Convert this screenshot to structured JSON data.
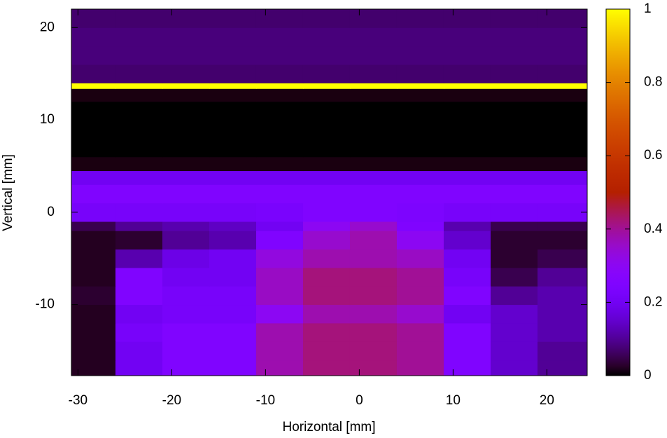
{
  "chart_data": {
    "type": "heatmap",
    "xlabel": "Horizontal [mm]",
    "ylabel": "Vertical [mm]",
    "xlim": [
      -30.7,
      24.3
    ],
    "ylim": [
      -17.7,
      22
    ],
    "xticks": [
      -30,
      -20,
      -10,
      0,
      10,
      20
    ],
    "yticks": [
      -10,
      0,
      10,
      20
    ],
    "zlim": [
      0,
      1
    ],
    "zticks": [
      0,
      0.2,
      0.4,
      0.6,
      0.8,
      1
    ],
    "x_edges": [
      -30.7,
      -26,
      -21,
      -16,
      -11,
      -6,
      -1,
      4,
      9,
      14,
      19,
      24.3
    ],
    "y_edges": [
      -17.7,
      -16,
      -14,
      -12,
      -10,
      -8,
      -6,
      -4,
      -2,
      -1,
      1,
      3,
      4.5,
      6,
      8,
      10,
      12,
      13.4,
      14,
      16,
      18,
      20,
      22
    ],
    "z": [
      [
        0.02,
        0.2,
        0.25,
        0.25,
        0.38,
        0.42,
        0.42,
        0.4,
        0.25,
        0.15,
        0.1
      ],
      [
        0.02,
        0.2,
        0.25,
        0.25,
        0.38,
        0.42,
        0.42,
        0.4,
        0.25,
        0.15,
        0.1
      ],
      [
        0.02,
        0.22,
        0.25,
        0.25,
        0.38,
        0.42,
        0.42,
        0.4,
        0.25,
        0.15,
        0.12
      ],
      [
        0.02,
        0.2,
        0.22,
        0.22,
        0.3,
        0.38,
        0.38,
        0.35,
        0.2,
        0.15,
        0.12
      ],
      [
        0.03,
        0.25,
        0.22,
        0.22,
        0.36,
        0.42,
        0.42,
        0.4,
        0.25,
        0.1,
        0.12
      ],
      [
        0.02,
        0.25,
        0.2,
        0.2,
        0.36,
        0.42,
        0.42,
        0.4,
        0.22,
        0.05,
        0.1
      ],
      [
        0.02,
        0.12,
        0.18,
        0.2,
        0.33,
        0.38,
        0.38,
        0.36,
        0.2,
        0.03,
        0.05
      ],
      [
        0.02,
        0.03,
        0.1,
        0.12,
        0.25,
        0.35,
        0.38,
        0.3,
        0.15,
        0.03,
        0.03
      ],
      [
        0.05,
        0.1,
        0.12,
        0.14,
        0.2,
        0.3,
        0.35,
        0.25,
        0.12,
        0.05,
        0.05
      ],
      [
        0.22,
        0.22,
        0.22,
        0.22,
        0.23,
        0.25,
        0.25,
        0.24,
        0.22,
        0.22,
        0.22
      ],
      [
        0.25,
        0.25,
        0.25,
        0.25,
        0.25,
        0.25,
        0.25,
        0.25,
        0.25,
        0.25,
        0.25
      ],
      [
        0.2,
        0.2,
        0.2,
        0.2,
        0.2,
        0.2,
        0.2,
        0.2,
        0.2,
        0.2,
        0.2
      ],
      [
        0.01,
        0.01,
        0.01,
        0.01,
        0.01,
        0.01,
        0.01,
        0.01,
        0.01,
        0.01,
        0.01
      ],
      [
        0,
        0,
        0,
        0,
        0,
        0,
        0,
        0,
        0,
        0,
        0
      ],
      [
        0,
        0,
        0,
        0,
        0,
        0,
        0,
        0,
        0,
        0,
        0
      ],
      [
        0,
        0,
        0,
        0,
        0,
        0,
        0,
        0,
        0,
        0,
        0
      ],
      [
        0.01,
        0.01,
        0.01,
        0.01,
        0.01,
        0.01,
        0.01,
        0.01,
        0.01,
        0.01,
        0.01
      ],
      [
        1,
        1,
        1,
        1,
        1,
        1,
        1,
        1,
        1,
        1,
        1
      ],
      [
        0.07,
        0.07,
        0.07,
        0.07,
        0.07,
        0.07,
        0.07,
        0.07,
        0.07,
        0.07,
        0.07
      ],
      [
        0.08,
        0.08,
        0.08,
        0.08,
        0.08,
        0.08,
        0.08,
        0.08,
        0.08,
        0.08,
        0.08
      ],
      [
        0.08,
        0.08,
        0.08,
        0.08,
        0.08,
        0.08,
        0.08,
        0.08,
        0.08,
        0.08,
        0.08
      ],
      [
        0.07,
        0.07,
        0.07,
        0.07,
        0.07,
        0.07,
        0.07,
        0.07,
        0.07,
        0.07,
        0.07
      ]
    ]
  }
}
